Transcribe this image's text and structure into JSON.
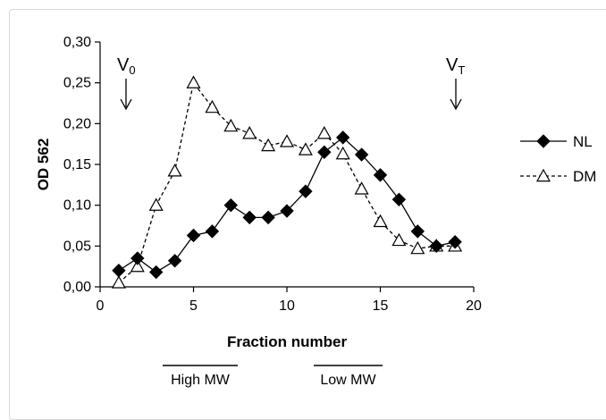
{
  "chart_data": {
    "type": "line",
    "title": "",
    "xlabel": "Fraction number",
    "ylabel": "OD 562",
    "xlim": [
      0,
      20
    ],
    "ylim": [
      0,
      0.3
    ],
    "x_ticks": [
      0,
      5,
      10,
      15,
      20
    ],
    "x_tick_labels": [
      "0",
      "5",
      "10",
      "15",
      "20"
    ],
    "y_ticks": [
      0,
      0.05,
      0.1,
      0.15,
      0.2,
      0.25,
      0.3
    ],
    "y_tick_labels": [
      "0,00",
      "0,05",
      "0,10",
      "0,15",
      "0,20",
      "0,25",
      "0,30"
    ],
    "grid": false,
    "legend": "right",
    "series": [
      {
        "name": "NL",
        "line": "solid",
        "marker": "filled-diamond",
        "color": "#000000",
        "x": [
          1,
          2,
          3,
          4,
          5,
          6,
          7,
          8,
          9,
          10,
          11,
          12,
          13,
          14,
          15,
          16,
          17,
          18,
          19
        ],
        "y": [
          0.02,
          0.035,
          0.018,
          0.032,
          0.063,
          0.068,
          0.1,
          0.085,
          0.085,
          0.093,
          0.117,
          0.165,
          0.183,
          0.162,
          0.137,
          0.107,
          0.068,
          0.05,
          0.055
        ]
      },
      {
        "name": "DM",
        "line": "dashed",
        "marker": "open-triangle",
        "color": "#000000",
        "x": [
          1,
          2,
          3,
          4,
          5,
          6,
          7,
          8,
          9,
          10,
          11,
          12,
          13,
          14,
          15,
          16,
          17,
          18,
          19
        ],
        "y": [
          0.005,
          0.025,
          0.1,
          0.142,
          0.25,
          0.22,
          0.197,
          0.188,
          0.173,
          0.178,
          0.168,
          0.188,
          0.163,
          0.12,
          0.08,
          0.057,
          0.047,
          0.05,
          0.05
        ]
      }
    ],
    "annotations": [
      {
        "text": "V",
        "subscript": "0",
        "x": 1.5,
        "arrow": "down"
      },
      {
        "text": "V",
        "subscript": "T",
        "x": 19,
        "arrow": "down"
      }
    ],
    "ranges": [
      {
        "label": "High MW",
        "from": 4.5,
        "to": 9.5
      },
      {
        "label": "Low MW",
        "from": 11.5,
        "to": 15.5
      }
    ]
  }
}
